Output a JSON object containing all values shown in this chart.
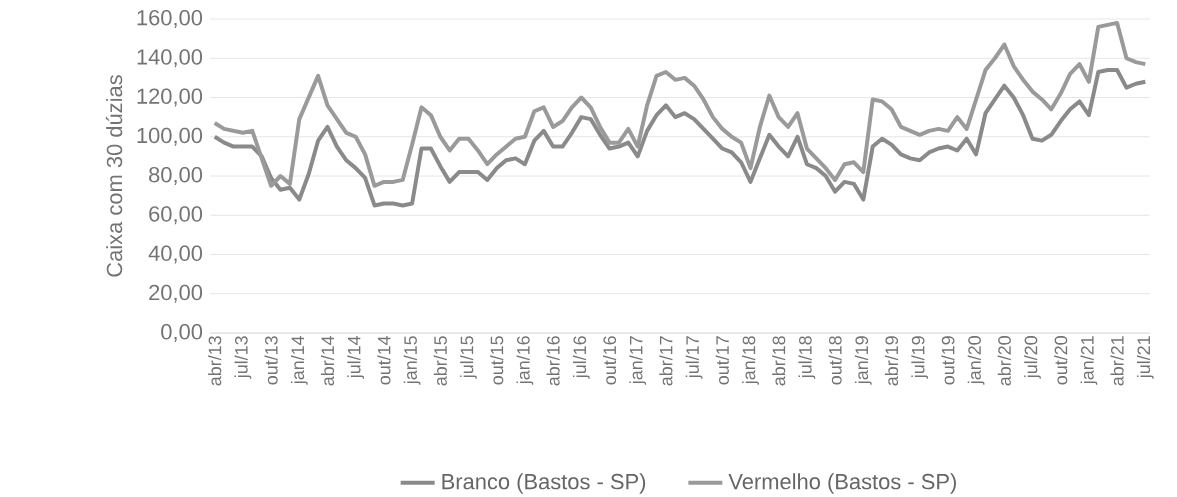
{
  "chart_data": {
    "type": "line",
    "ylabel": "Caixa com 30 dúzias",
    "categories": [
      "abr/13",
      null,
      null,
      "jul/13",
      null,
      null,
      "out/13",
      null,
      null,
      "jan/14",
      null,
      null,
      "abr/14",
      null,
      null,
      "jul/14",
      null,
      null,
      "out/14",
      null,
      null,
      "jan/15",
      null,
      null,
      "abr/15",
      null,
      null,
      "jul/15",
      null,
      null,
      "out/15",
      null,
      null,
      "jan/16",
      null,
      null,
      "abr/16",
      null,
      null,
      "jul/16",
      null,
      null,
      "out/16",
      null,
      null,
      "jan/17",
      null,
      null,
      "abr/17",
      null,
      null,
      "jul/17",
      null,
      null,
      "out/17",
      null,
      null,
      "jan/18",
      null,
      null,
      "abr/18",
      null,
      null,
      "jul/18",
      null,
      null,
      "out/18",
      null,
      null,
      "jan/19",
      null,
      null,
      "abr/19",
      null,
      null,
      "jul/19",
      null,
      null,
      "out/19",
      null,
      null,
      "jan/20",
      null,
      null,
      "abr/20",
      null,
      null,
      "jul/20",
      null,
      null,
      "out/20",
      null,
      null,
      "jan/21",
      null,
      null,
      "abr/21",
      null,
      null,
      "jul/21"
    ],
    "series": [
      {
        "name": "Branco (Bastos - SP)",
        "color": "#8a8a8a",
        "values": [
          100,
          97,
          95,
          95,
          95,
          90,
          79,
          73,
          74,
          68,
          81,
          98,
          105,
          95,
          88,
          84,
          79,
          65,
          66,
          66,
          65,
          66,
          94,
          94,
          85,
          77,
          82,
          82,
          82,
          78,
          84,
          88,
          89,
          86,
          98,
          103,
          95,
          95,
          102,
          110,
          109,
          101,
          94,
          95,
          97,
          90,
          103,
          111,
          116,
          110,
          112,
          109,
          104,
          99,
          94,
          92,
          87,
          77,
          89,
          101,
          95,
          90,
          100,
          86,
          84,
          80,
          72,
          77,
          76,
          68,
          95,
          99,
          96,
          91,
          89,
          88,
          92,
          94,
          95,
          93,
          99,
          91,
          112,
          119,
          126,
          120,
          111,
          99,
          98,
          101,
          108,
          114,
          118,
          111,
          133,
          134,
          134,
          125,
          127,
          128
        ]
      },
      {
        "name": "Vermelho (Bastos - SP)",
        "color": "#9a9a9a",
        "values": [
          107,
          104,
          103,
          102,
          103,
          89,
          75,
          80,
          76,
          109,
          120,
          131,
          116,
          109,
          102,
          100,
          91,
          75,
          77,
          77,
          78,
          96,
          115,
          111,
          100,
          93,
          99,
          99,
          93,
          86,
          91,
          95,
          99,
          100,
          113,
          115,
          105,
          108,
          115,
          120,
          115,
          105,
          97,
          97,
          104,
          95,
          116,
          131,
          133,
          129,
          130,
          126,
          119,
          110,
          104,
          100,
          97,
          84,
          105,
          121,
          110,
          105,
          112,
          94,
          89,
          84,
          78,
          86,
          87,
          82,
          119,
          118,
          114,
          105,
          103,
          101,
          103,
          104,
          103,
          110,
          104,
          119,
          134,
          140,
          147,
          136,
          129,
          123,
          119,
          114,
          122,
          132,
          137,
          128,
          156,
          157,
          158,
          140,
          138,
          137
        ]
      }
    ],
    "ylim": [
      0,
      160
    ],
    "yticks": [
      {
        "value": 0,
        "label": "0,00"
      },
      {
        "value": 20,
        "label": "20,00"
      },
      {
        "value": 40,
        "label": "40,00"
      },
      {
        "value": 60,
        "label": "60,00"
      },
      {
        "value": 80,
        "label": "80,00"
      },
      {
        "value": 100,
        "label": "100,00"
      },
      {
        "value": 120,
        "label": "120,00"
      },
      {
        "value": 140,
        "label": "140,00"
      },
      {
        "value": 160,
        "label": "160,00"
      }
    ],
    "grid": "y",
    "legend": "bottom",
    "marker": "none",
    "line_style": "solid"
  }
}
